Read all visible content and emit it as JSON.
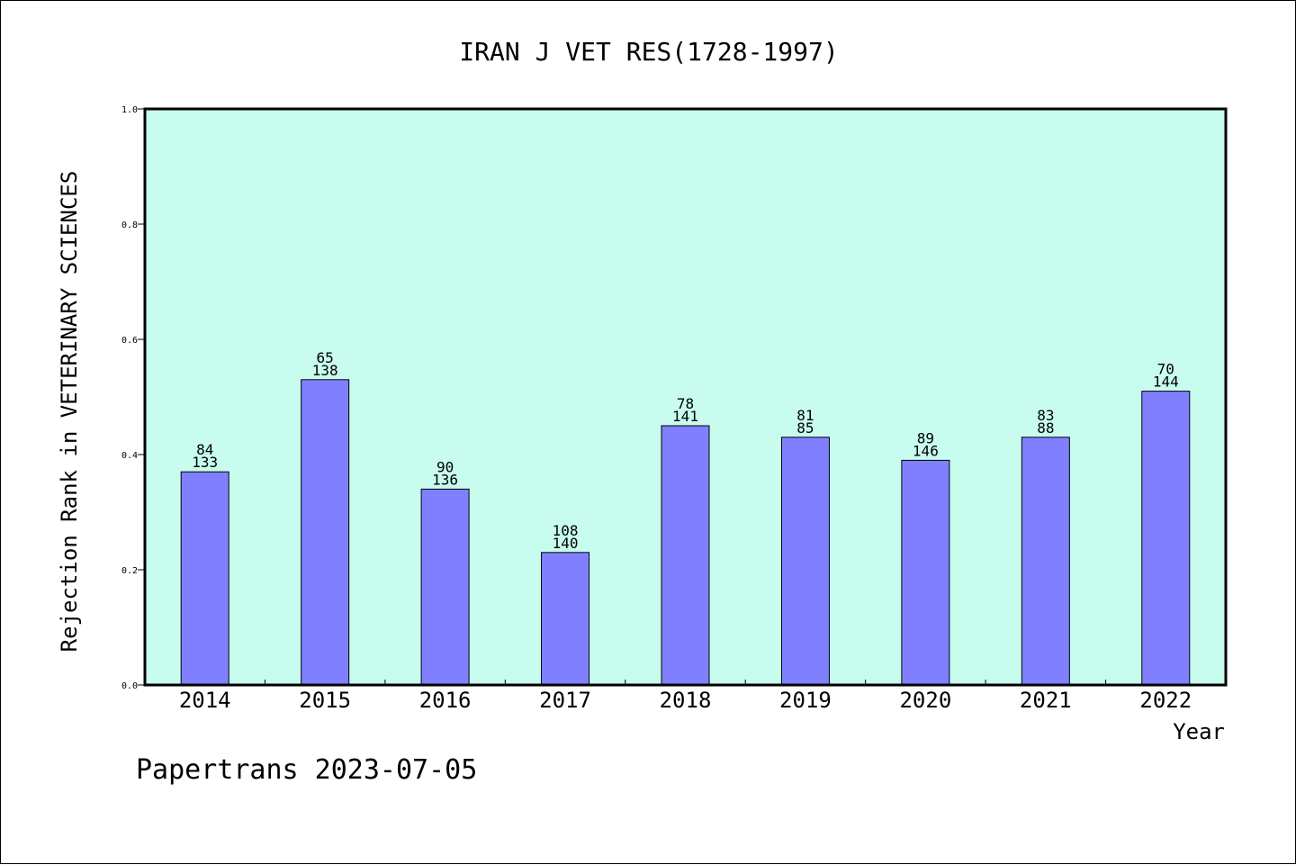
{
  "chart_data": {
    "type": "bar",
    "title": "IRAN J VET RES(1728-1997)",
    "xlabel": "Year",
    "ylabel": "Rejection Rank in VETERINARY SCIENCES",
    "ylim": [
      0,
      1.0
    ],
    "yticks": [
      "0.0",
      "0.2",
      "0.4",
      "0.6",
      "0.8",
      "1.0"
    ],
    "categories": [
      "2014",
      "2015",
      "2016",
      "2017",
      "2018",
      "2019",
      "2020",
      "2021",
      "2022"
    ],
    "values": [
      0.37,
      0.53,
      0.34,
      0.23,
      0.45,
      0.43,
      0.39,
      0.43,
      0.51
    ],
    "labels_top": [
      "84",
      "65",
      "90",
      "108",
      "78",
      "81",
      "89",
      "83",
      "70"
    ],
    "labels_bottom": [
      "133",
      "138",
      "136",
      "140",
      "141",
      "85",
      "146",
      "88",
      "144"
    ],
    "grid": false,
    "colors": {
      "bar": "#8080ff",
      "plot_bg": "#c8fcee",
      "bar_edge": "#000000"
    }
  },
  "footer": "Papertrans 2023-07-05"
}
